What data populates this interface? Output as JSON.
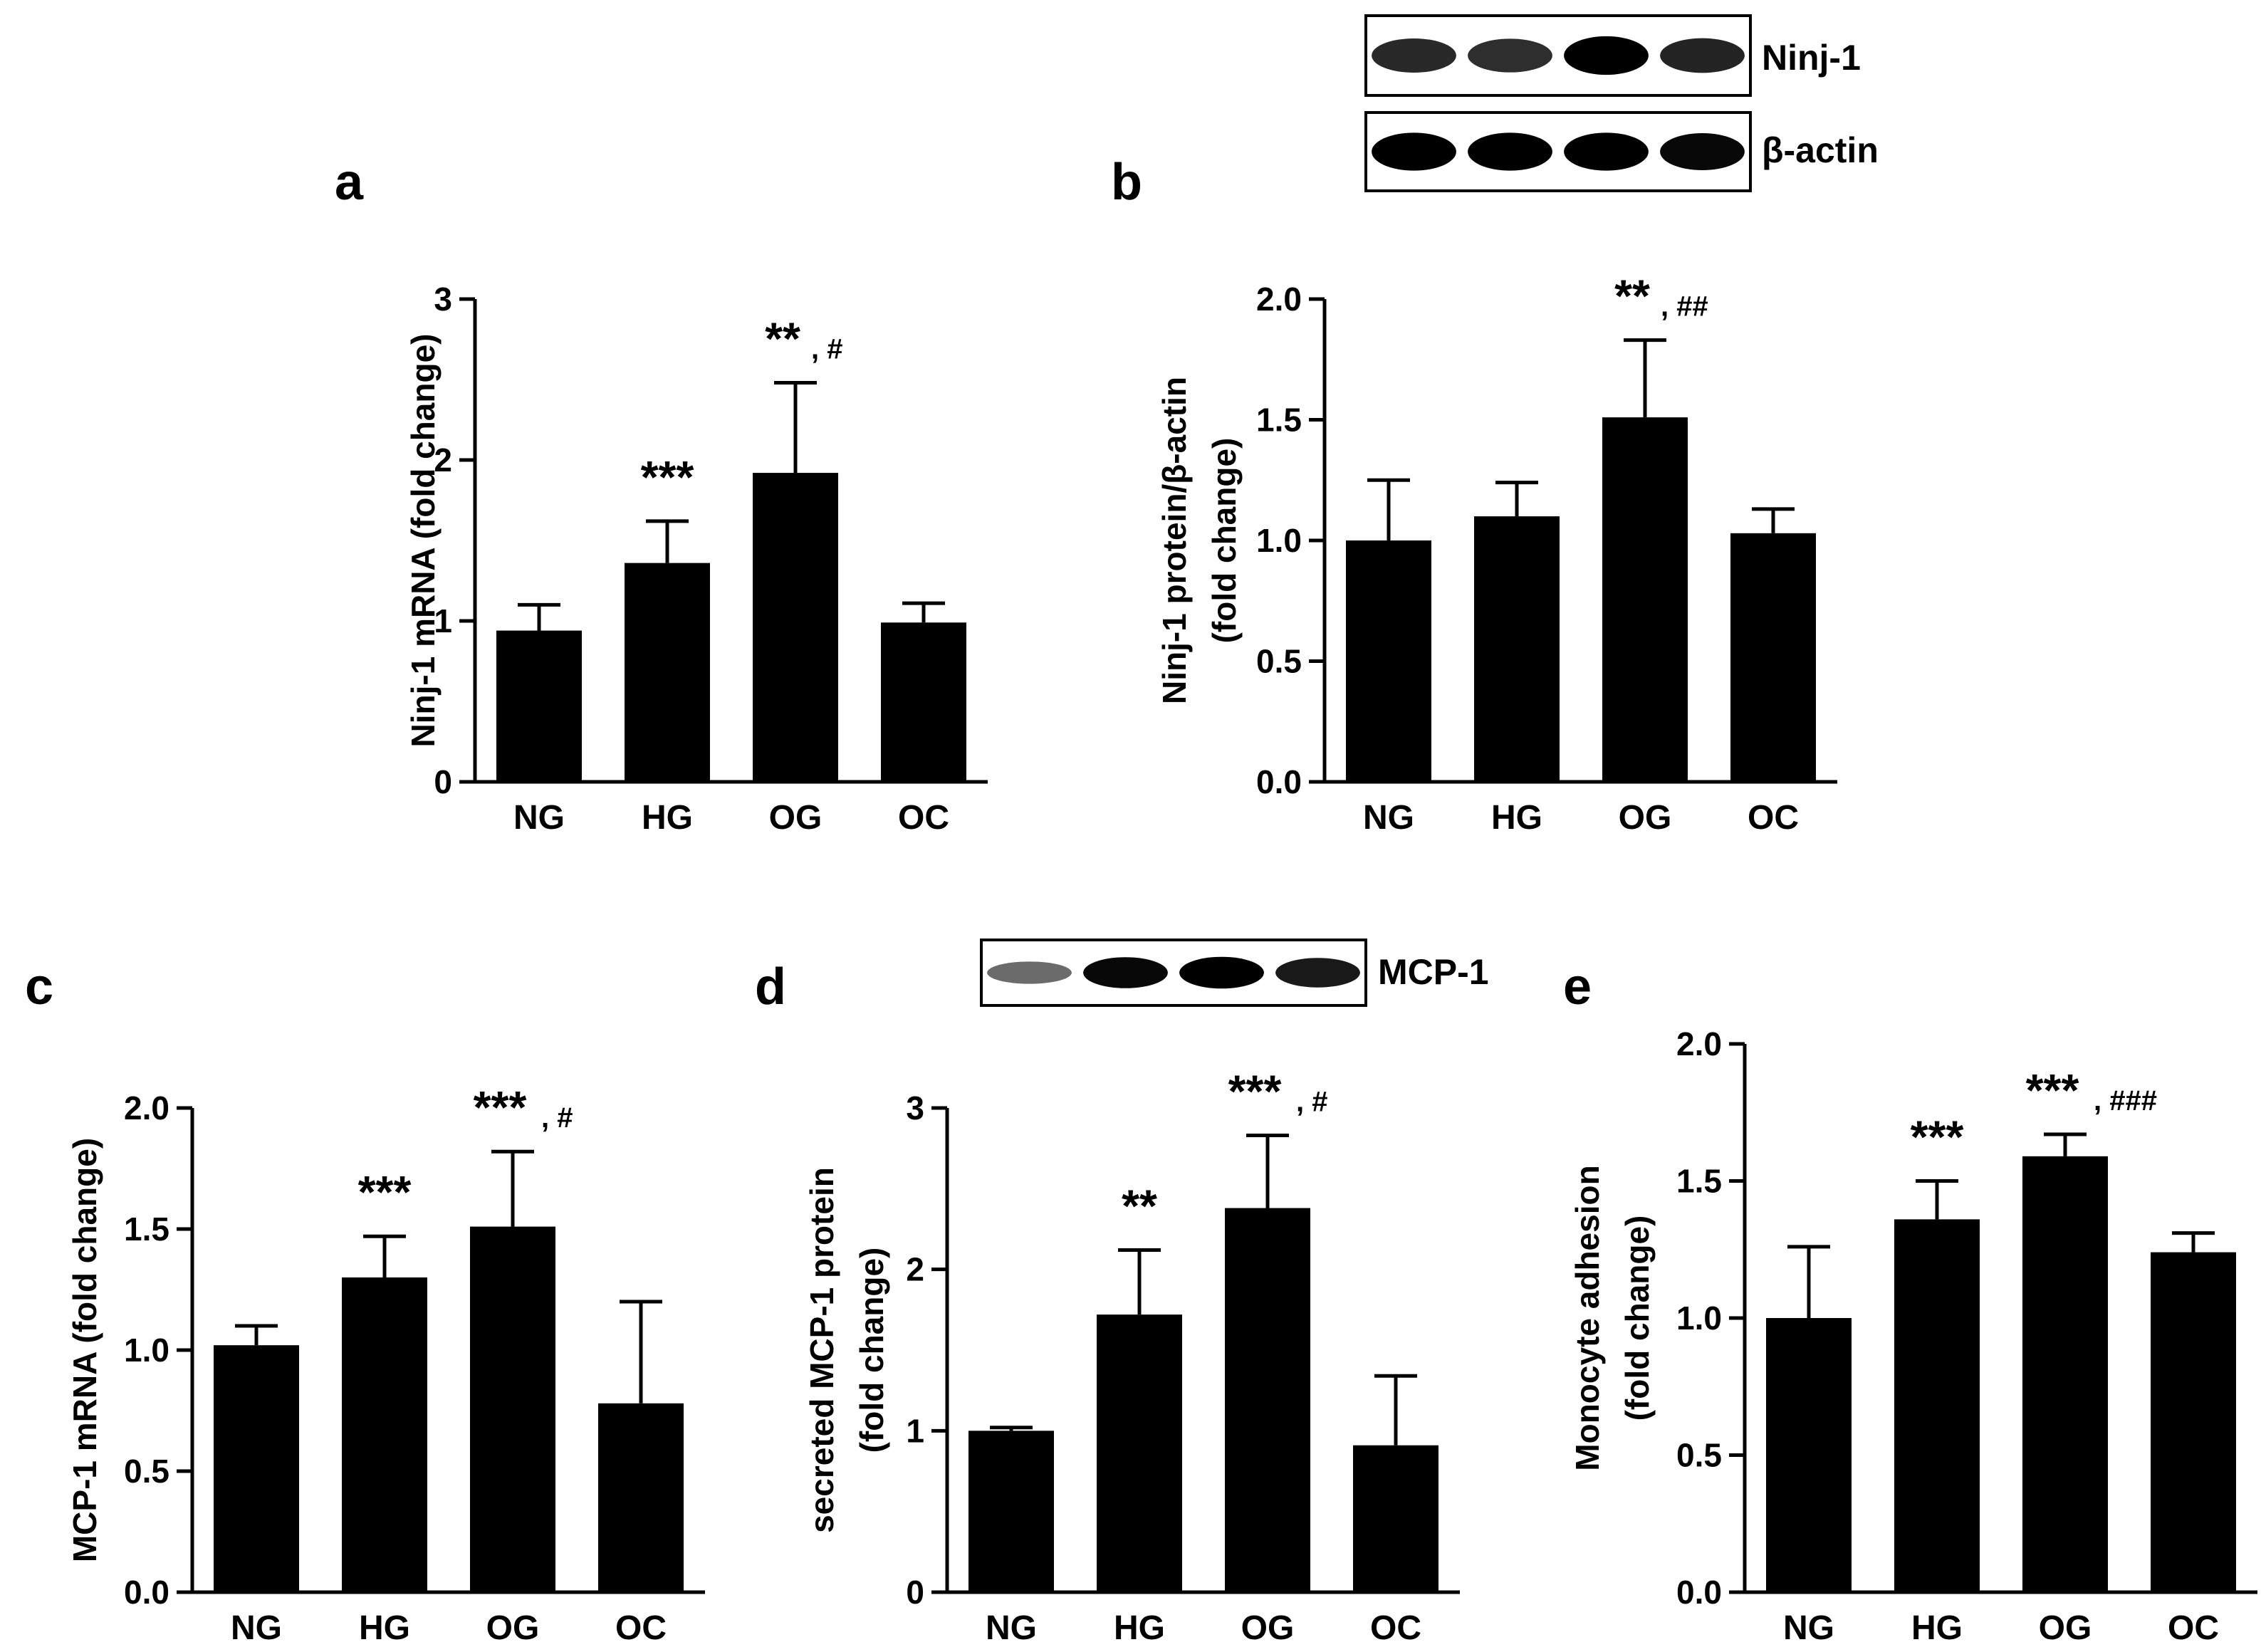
{
  "colors": {
    "bar": "#000000",
    "axis": "#000000",
    "background": "#ffffff",
    "blot_background": "#ffffff"
  },
  "blots": [
    {
      "label": "Ninj-1",
      "panel": "b",
      "band_count": 4,
      "relative_intensity": [
        0.75,
        0.72,
        1.0,
        0.78
      ]
    },
    {
      "label": "β-actin",
      "panel": "b",
      "band_count": 4,
      "relative_intensity": [
        1.0,
        1.0,
        1.0,
        0.95
      ]
    },
    {
      "label": "MCP-1",
      "panel": "d",
      "band_count": 4,
      "relative_intensity": [
        0.35,
        0.95,
        1.0,
        0.85
      ]
    }
  ],
  "chart_data": [
    {
      "panel_letter": "a",
      "type": "bar",
      "categories": [
        "NG",
        "HG",
        "OG",
        "OC"
      ],
      "values": [
        0.94,
        1.36,
        1.92,
        0.99
      ],
      "errors": [
        0.16,
        0.26,
        0.56,
        0.12
      ],
      "annotations": [
        {
          "category_index": 1,
          "stars": "***",
          "hash": ""
        },
        {
          "category_index": 2,
          "stars": "**",
          "hash": ", #"
        }
      ],
      "ylabel_lines": [
        "Ninj-1 mRNA (fold change)"
      ],
      "ylim": [
        0,
        3
      ],
      "yticks": [
        0,
        1,
        2,
        3
      ],
      "ytick_labels": [
        "0",
        "1",
        "2",
        "3"
      ]
    },
    {
      "panel_letter": "b",
      "type": "bar",
      "categories": [
        "NG",
        "HG",
        "OG",
        "OC"
      ],
      "values": [
        1.0,
        1.1,
        1.51,
        1.03
      ],
      "errors": [
        0.25,
        0.14,
        0.32,
        0.1
      ],
      "annotations": [
        {
          "category_index": 2,
          "stars": "**",
          "hash": ", ##"
        }
      ],
      "ylabel_lines": [
        "Ninj-1 protein/β-actin",
        "(fold change)"
      ],
      "ylim": [
        0,
        2.0
      ],
      "yticks": [
        0,
        0.5,
        1.0,
        1.5,
        2.0
      ],
      "ytick_labels": [
        "0.0",
        "0.5",
        "1.0",
        "1.5",
        "2.0"
      ]
    },
    {
      "panel_letter": "c",
      "type": "bar",
      "categories": [
        "NG",
        "HG",
        "OG",
        "OC"
      ],
      "values": [
        1.02,
        1.3,
        1.51,
        0.78
      ],
      "errors": [
        0.08,
        0.17,
        0.31,
        0.42
      ],
      "annotations": [
        {
          "category_index": 1,
          "stars": "***",
          "hash": ""
        },
        {
          "category_index": 2,
          "stars": "***",
          "hash": ", #"
        }
      ],
      "ylabel_lines": [
        "MCP-1 mRNA (fold change)"
      ],
      "ylim": [
        0,
        2.0
      ],
      "yticks": [
        0,
        0.5,
        1.0,
        1.5,
        2.0
      ],
      "ytick_labels": [
        "0.0",
        "0.5",
        "1.0",
        "1.5",
        "2.0"
      ]
    },
    {
      "panel_letter": "d",
      "type": "bar",
      "categories": [
        "NG",
        "HG",
        "OG",
        "OC"
      ],
      "values": [
        1.0,
        1.72,
        2.38,
        0.91
      ],
      "errors": [
        0.02,
        0.4,
        0.45,
        0.43
      ],
      "annotations": [
        {
          "category_index": 1,
          "stars": "**",
          "hash": ""
        },
        {
          "category_index": 2,
          "stars": "***",
          "hash": ", #"
        }
      ],
      "ylabel_lines": [
        "secreted MCP-1 protein",
        "(fold change)"
      ],
      "ylim": [
        0,
        3
      ],
      "yticks": [
        0,
        1,
        2,
        3
      ],
      "ytick_labels": [
        "0",
        "1",
        "2",
        "3"
      ]
    },
    {
      "panel_letter": "e",
      "type": "bar",
      "categories": [
        "NG",
        "HG",
        "OG",
        "OC"
      ],
      "values": [
        1.0,
        1.36,
        1.59,
        1.24
      ],
      "errors": [
        0.26,
        0.14,
        0.08,
        0.07
      ],
      "annotations": [
        {
          "category_index": 1,
          "stars": "***",
          "hash": ""
        },
        {
          "category_index": 2,
          "stars": "***",
          "hash": ", ###"
        }
      ],
      "ylabel_lines": [
        "Monocyte adhesion",
        "(fold change)"
      ],
      "ylim": [
        0,
        2.0
      ],
      "yticks": [
        0,
        0.5,
        1.0,
        1.5,
        2.0
      ],
      "ytick_labels": [
        "0.0",
        "0.5",
        "1.0",
        "1.5",
        "2.0"
      ]
    }
  ]
}
